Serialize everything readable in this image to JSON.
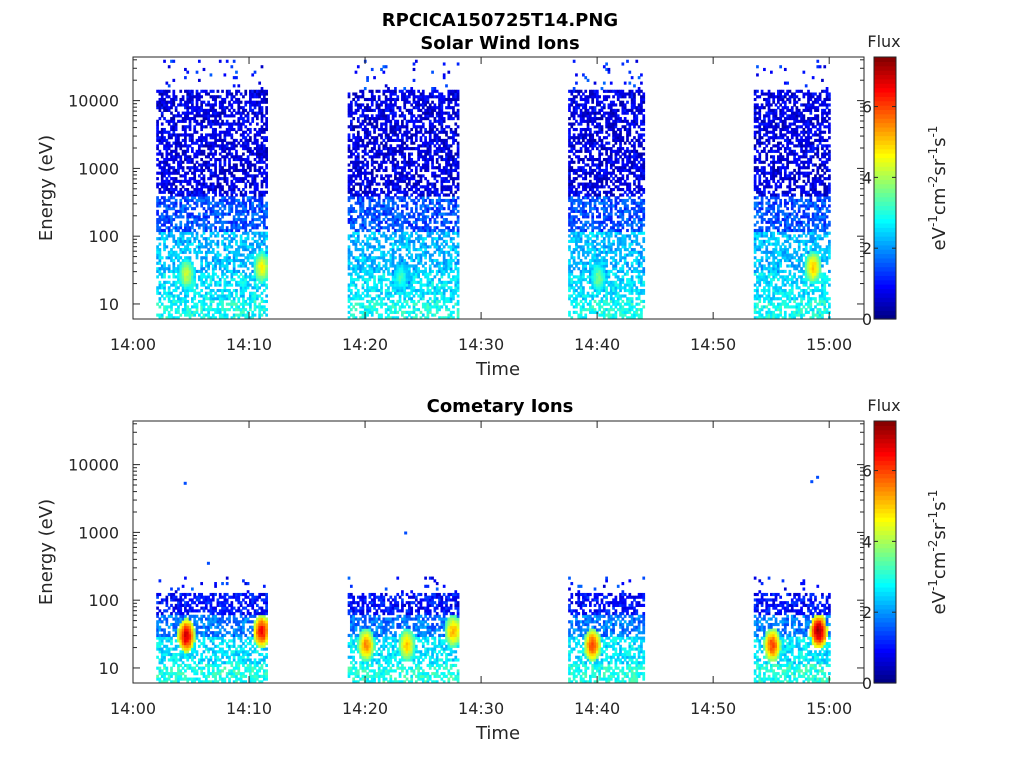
{
  "figure_title": "RPCICA150725T14.PNG",
  "chart_data": [
    {
      "type": "heatmap",
      "title": "Solar Wind Ions",
      "xlabel": "Time",
      "ylabel": "Energy (eV)",
      "xlim": [
        "14:00",
        "15:03"
      ],
      "xticks": [
        "14:00",
        "14:10",
        "14:20",
        "14:30",
        "14:40",
        "14:50",
        "15:00"
      ],
      "yscale": "log",
      "ylim": [
        6,
        44000
      ],
      "yticks": [
        10,
        100,
        1000,
        10000
      ],
      "ytick_labels": [
        "10",
        "100",
        "1000",
        "10000"
      ],
      "colorbar": {
        "title": "Flux",
        "label": "eV-1cm-2sr-1s-1",
        "range": [
          0,
          7.4
        ],
        "ticks": [
          0,
          2,
          4,
          6
        ],
        "colormap": "jet"
      },
      "grid": false,
      "data_intervals": [
        {
          "start": "14:02",
          "end": "14:11.5",
          "emax": 15000,
          "stray_emax": 40000
        },
        {
          "start": "14:18.5",
          "end": "14:28",
          "emax": 15000,
          "stray_emax": 40000
        },
        {
          "start": "14:37.5",
          "end": "14:44",
          "emax": 15000,
          "stray_emax": 40000
        },
        {
          "start": "14:53.5",
          "end": "15:00",
          "emax": 15000,
          "stray_emax": 40000
        }
      ],
      "background_flux": [
        {
          "emin": 6,
          "emax": 12,
          "flux": 2.9
        },
        {
          "emin": 12,
          "emax": 30,
          "flux": 2.6
        },
        {
          "emin": 30,
          "emax": 120,
          "flux": 2.3
        },
        {
          "emin": 120,
          "emax": 400,
          "flux": 1.5
        },
        {
          "emin": 400,
          "emax": 15000,
          "flux": 0.7
        }
      ],
      "peaks": [
        {
          "t": "14:04.5",
          "energy": 28,
          "flux": 4.2
        },
        {
          "t": "14:11",
          "energy": 35,
          "flux": 4.6
        },
        {
          "t": "14:23",
          "energy": 25,
          "flux": 3.2
        },
        {
          "t": "14:40",
          "energy": 25,
          "flux": 3.6
        },
        {
          "t": "14:58.5",
          "energy": 35,
          "flux": 5.0
        }
      ]
    },
    {
      "type": "heatmap",
      "title": "Cometary Ions",
      "xlabel": "Time",
      "ylabel": "Energy (eV)",
      "xlim": [
        "14:00",
        "15:03"
      ],
      "xticks": [
        "14:00",
        "14:10",
        "14:20",
        "14:30",
        "14:40",
        "14:50",
        "15:00"
      ],
      "yscale": "log",
      "ylim": [
        6,
        44000
      ],
      "yticks": [
        10,
        100,
        1000,
        10000
      ],
      "ytick_labels": [
        "10",
        "100",
        "1000",
        "10000"
      ],
      "colorbar": {
        "title": "Flux",
        "label": "eV-1cm-2sr-1s-1",
        "range": [
          0,
          7.4
        ],
        "ticks": [
          0,
          2,
          4,
          6
        ],
        "colormap": "jet"
      },
      "grid": false,
      "data_intervals": [
        {
          "start": "14:02",
          "end": "14:11.5",
          "emax": 130,
          "stray_emax": 230
        },
        {
          "start": "14:18.5",
          "end": "14:28",
          "emax": 130,
          "stray_emax": 230
        },
        {
          "start": "14:37.5",
          "end": "14:44",
          "emax": 130,
          "stray_emax": 230
        },
        {
          "start": "14:53.5",
          "end": "15:00",
          "emax": 130,
          "stray_emax": 230
        }
      ],
      "background_flux": [
        {
          "emin": 6,
          "emax": 12,
          "flux": 3.0
        },
        {
          "emin": 12,
          "emax": 30,
          "flux": 2.6
        },
        {
          "emin": 30,
          "emax": 60,
          "flux": 1.8
        },
        {
          "emin": 60,
          "emax": 130,
          "flux": 1.0
        }
      ],
      "peaks": [
        {
          "t": "14:04.5",
          "energy": 30,
          "flux": 6.8
        },
        {
          "t": "14:11",
          "energy": 35,
          "flux": 6.5
        },
        {
          "t": "14:20",
          "energy": 22,
          "flux": 5.5
        },
        {
          "t": "14:23.5",
          "energy": 22,
          "flux": 5.0
        },
        {
          "t": "14:27.5",
          "energy": 35,
          "flux": 5.2
        },
        {
          "t": "14:39.5",
          "energy": 22,
          "flux": 6.0
        },
        {
          "t": "14:55",
          "energy": 22,
          "flux": 6.0
        },
        {
          "t": "14:59",
          "energy": 35,
          "flux": 7.2
        }
      ],
      "isolated_points": [
        {
          "t": "14:04.5",
          "energy": 5300
        },
        {
          "t": "14:23.5",
          "energy": 980
        },
        {
          "t": "14:59",
          "energy": 6500
        },
        {
          "t": "14:58.5",
          "energy": 5600
        },
        {
          "t": "14:06.5",
          "energy": 350
        }
      ]
    }
  ],
  "colors": {
    "axis": "#262626",
    "background": "#ffffff"
  }
}
